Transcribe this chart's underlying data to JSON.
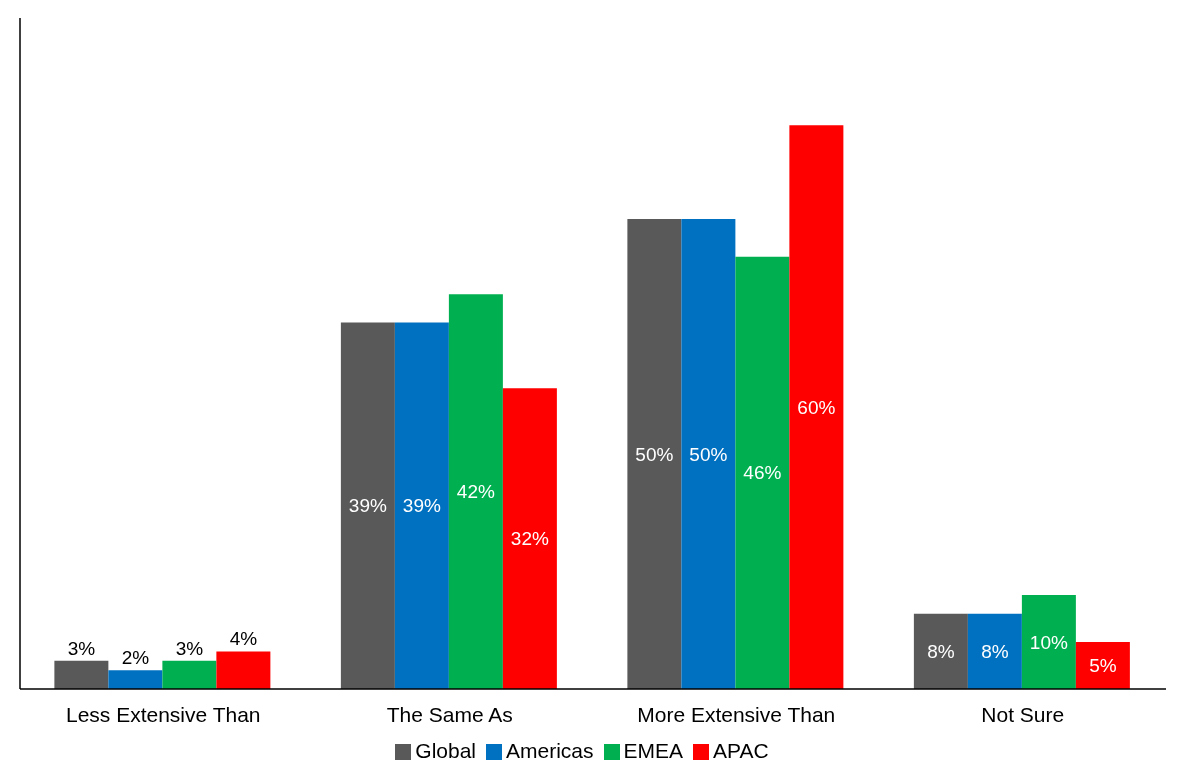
{
  "chart_data": {
    "type": "bar",
    "categories": [
      "Less Extensive Than",
      "The Same As",
      "More Extensive Than",
      "Not Sure"
    ],
    "series": [
      {
        "name": "Global",
        "color": "#595959",
        "values": [
          3,
          39,
          50,
          8
        ],
        "value_labels": [
          "3%",
          "39%",
          "50%",
          "8%"
        ]
      },
      {
        "name": "Americas",
        "color": "#0070c0",
        "values": [
          2,
          39,
          50,
          8
        ],
        "value_labels": [
          "2%",
          "39%",
          "50%",
          "8%"
        ]
      },
      {
        "name": "EMEA",
        "color": "#00b050",
        "values": [
          3,
          42,
          46,
          10
        ],
        "value_labels": [
          "3%",
          "42%",
          "46%",
          "10%"
        ]
      },
      {
        "name": "APAC",
        "color": "#ff0000",
        "values": [
          4,
          32,
          60,
          5
        ],
        "value_labels": [
          "4%",
          "32%",
          "60%",
          "5%"
        ]
      }
    ],
    "legend": "bottom",
    "tick_labels": "x"
  }
}
